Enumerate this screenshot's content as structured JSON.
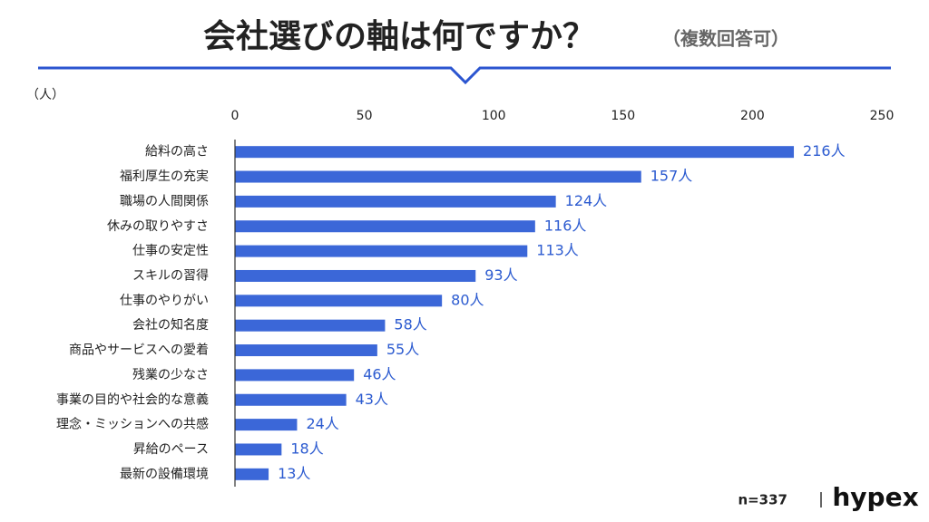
{
  "chart_data": {
    "type": "hbar",
    "title": "会社選びの軸は何ですか？",
    "subtitle": "（複数回答可）",
    "unit_label": "（人）",
    "note": "n=337",
    "brand": "hypex",
    "categories": [
      "給料の高さ",
      "福利厚生の充実",
      "職場の人間関係",
      "休みの取りやすさ",
      "仕事の安定性",
      "スキルの習得",
      "仕事のやりがい",
      "会社の知名度",
      "商品やサービスへの愛着",
      "残業の少なさ",
      "事業の目的や社会的な意義",
      "理念・ミッションへの共感",
      "昇給のペース",
      "最新の設備環境"
    ],
    "values": [
      216,
      157,
      124,
      116,
      113,
      93,
      80,
      58,
      55,
      46,
      43,
      24,
      18,
      13
    ],
    "value_labels": [
      "216人",
      "157人",
      "124人",
      "116人",
      "113人",
      "93人",
      "80人",
      "58人",
      "55人",
      "46人",
      "43人",
      "24人",
      "18人",
      "13人"
    ],
    "color": "#3b67d8",
    "xlim": [
      0,
      250
    ],
    "xticks": [
      0,
      50,
      100,
      150,
      200,
      250
    ]
  }
}
